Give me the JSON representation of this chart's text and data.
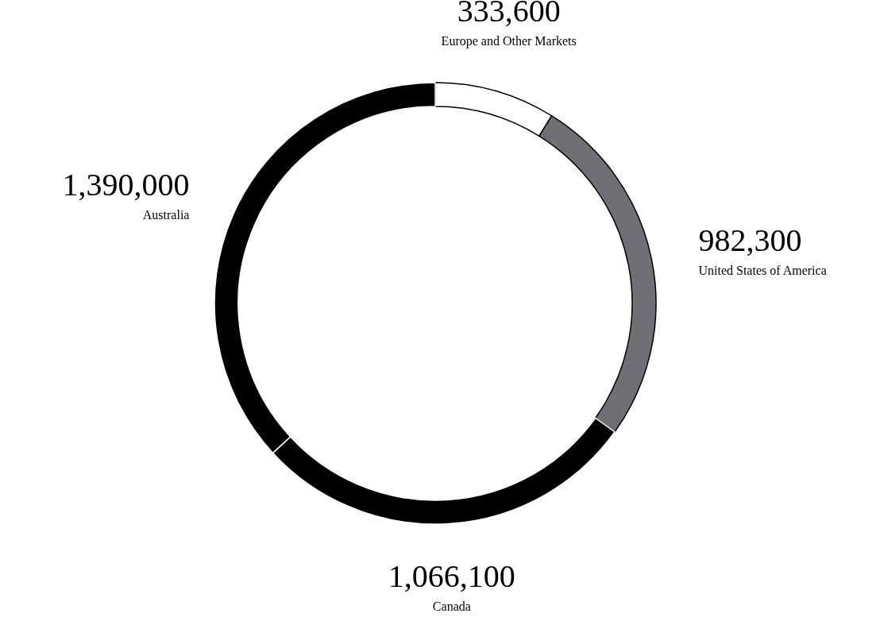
{
  "chart_data": {
    "type": "donut",
    "categories": [
      "Europe and Other Markets",
      "United States of America",
      "Canada",
      "Australia"
    ],
    "values": [
      333600,
      982300,
      1066100,
      1390000
    ],
    "value_labels": [
      "333,600",
      "982,300",
      "1,066,100",
      "1,390,000"
    ],
    "colors": [
      "#ffffff",
      "#6e7075",
      "#000000",
      "#000000"
    ],
    "legend": false
  }
}
